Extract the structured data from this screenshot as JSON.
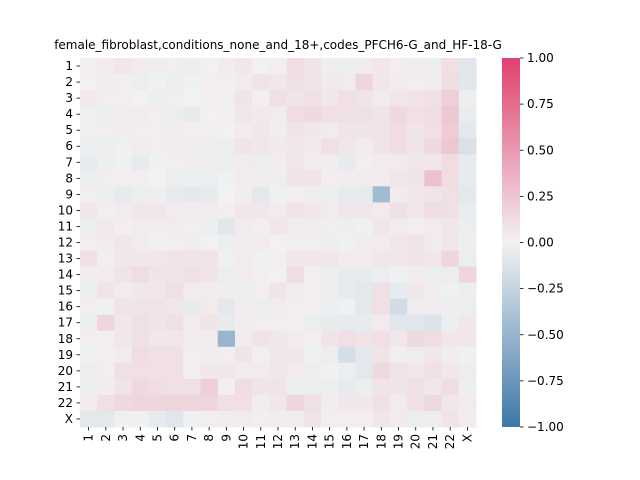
{
  "chart_data": {
    "type": "heatmap",
    "title": "female_fibroblast,conditions_none_and_18+,codes_PFCH6-G_and_HF-18-G",
    "rows": [
      "1",
      "2",
      "3",
      "4",
      "5",
      "6",
      "7",
      "8",
      "9",
      "10",
      "11",
      "12",
      "13",
      "14",
      "15",
      "16",
      "17",
      "18",
      "19",
      "20",
      "21",
      "22",
      "X"
    ],
    "cols": [
      "1",
      "2",
      "3",
      "4",
      "5",
      "6",
      "7",
      "8",
      "9",
      "10",
      "11",
      "12",
      "13",
      "14",
      "15",
      "16",
      "17",
      "18",
      "19",
      "20",
      "21",
      "22",
      "X"
    ],
    "values": [
      [
        0.02,
        0.04,
        0.06,
        0.04,
        0.03,
        0.02,
        -0.04,
        0.01,
        0.03,
        0.06,
        0.01,
        0.02,
        0.12,
        0.08,
        0.03,
        -0.03,
        0.04,
        0.06,
        0.02,
        0.03,
        -0.03,
        0.1,
        -0.1
      ],
      [
        0.01,
        0.03,
        0.02,
        -0.04,
        -0.02,
        -0.04,
        -0.02,
        0.02,
        0.02,
        0.04,
        0.08,
        0.07,
        0.1,
        0.08,
        0.05,
        0.04,
        0.16,
        0.06,
        0.04,
        0.02,
        0.03,
        0.12,
        -0.09
      ],
      [
        0.05,
        0.02,
        0.02,
        0.01,
        -0.03,
        0.02,
        0.0,
        0.02,
        0.02,
        0.08,
        0.02,
        0.1,
        0.08,
        0.1,
        0.06,
        0.1,
        0.08,
        0.04,
        0.06,
        0.08,
        0.1,
        0.2,
        -0.03
      ],
      [
        -0.02,
        -0.04,
        0.03,
        0.04,
        0.02,
        -0.04,
        -0.06,
        0.01,
        0.02,
        0.06,
        0.05,
        0.04,
        0.12,
        0.14,
        0.1,
        0.1,
        0.1,
        0.08,
        0.14,
        0.1,
        0.12,
        0.24,
        -0.05
      ],
      [
        -0.02,
        0.02,
        0.03,
        0.02,
        0.02,
        0.04,
        0.02,
        0.02,
        0.01,
        0.04,
        0.06,
        0.03,
        0.08,
        0.06,
        0.04,
        0.08,
        0.08,
        0.08,
        0.12,
        0.08,
        0.1,
        0.22,
        -0.08
      ],
      [
        -0.03,
        -0.04,
        -0.02,
        0.03,
        0.02,
        0.04,
        0.03,
        -0.03,
        -0.04,
        0.08,
        0.06,
        0.05,
        0.07,
        0.05,
        0.1,
        0.06,
        0.04,
        0.08,
        0.12,
        0.08,
        0.14,
        0.24,
        -0.14
      ],
      [
        -0.06,
        -0.03,
        -0.02,
        -0.06,
        -0.02,
        0.02,
        0.03,
        0.03,
        -0.04,
        0.04,
        -0.04,
        0.03,
        0.06,
        0.03,
        0.03,
        -0.06,
        0.02,
        0.04,
        0.04,
        0.06,
        0.06,
        0.12,
        -0.06
      ],
      [
        -0.03,
        0.02,
        0.02,
        0.02,
        0.0,
        -0.04,
        -0.03,
        -0.04,
        -0.02,
        0.04,
        0.03,
        -0.03,
        0.08,
        0.08,
        0.02,
        0.03,
        0.04,
        0.04,
        0.06,
        0.08,
        0.28,
        0.12,
        -0.06
      ],
      [
        0.02,
        -0.04,
        -0.06,
        -0.04,
        -0.03,
        -0.06,
        -0.08,
        -0.06,
        0.0,
        0.03,
        -0.08,
        -0.02,
        0.02,
        -0.03,
        -0.04,
        -0.06,
        -0.06,
        -0.45,
        0.04,
        0.06,
        0.08,
        0.1,
        -0.08
      ],
      [
        0.06,
        0.02,
        0.04,
        0.06,
        0.06,
        0.04,
        0.04,
        0.04,
        0.02,
        0.06,
        0.06,
        0.04,
        0.08,
        0.06,
        0.04,
        0.06,
        0.06,
        0.04,
        0.1,
        0.06,
        0.12,
        0.1,
        -0.05
      ],
      [
        -0.04,
        0.05,
        0.02,
        0.04,
        0.03,
        0.04,
        0.02,
        -0.03,
        -0.1,
        0.04,
        0.02,
        0.06,
        0.04,
        0.03,
        0.02,
        -0.03,
        -0.02,
        0.06,
        0.04,
        0.02,
        0.04,
        0.06,
        -0.04
      ],
      [
        0.02,
        0.04,
        0.06,
        0.04,
        -0.02,
        0.02,
        0.03,
        0.01,
        -0.03,
        0.03,
        0.04,
        0.01,
        0.02,
        0.02,
        -0.03,
        -0.02,
        0.03,
        0.04,
        0.06,
        0.08,
        0.04,
        0.06,
        -0.03
      ],
      [
        0.1,
        0.02,
        0.06,
        0.06,
        0.06,
        0.08,
        0.08,
        0.08,
        -0.02,
        0.03,
        -0.02,
        0.02,
        0.06,
        0.06,
        0.06,
        0.04,
        0.04,
        0.06,
        0.06,
        0.08,
        0.06,
        0.16,
        -0.04
      ],
      [
        0.03,
        0.04,
        0.08,
        0.12,
        0.08,
        0.08,
        0.1,
        0.08,
        -0.04,
        0.04,
        0.02,
        0.01,
        0.12,
        0.02,
        -0.04,
        -0.06,
        -0.06,
        -0.04,
        -0.02,
        0.03,
        -0.04,
        -0.04,
        0.16
      ],
      [
        -0.03,
        0.08,
        0.04,
        0.06,
        0.06,
        0.1,
        0.04,
        0.04,
        0.03,
        -0.03,
        0.02,
        0.08,
        0.03,
        0.02,
        -0.04,
        -0.06,
        -0.08,
        0.1,
        -0.06,
        0.06,
        0.03,
        -0.02,
        -0.03
      ],
      [
        0.02,
        -0.02,
        0.08,
        0.08,
        0.08,
        0.06,
        -0.06,
        0.04,
        -0.08,
        0.03,
        -0.04,
        0.04,
        0.02,
        0.02,
        -0.03,
        -0.02,
        -0.08,
        0.1,
        -0.18,
        -0.04,
        0.04,
        -0.03,
        -0.04
      ],
      [
        -0.03,
        0.16,
        0.06,
        0.1,
        0.08,
        0.1,
        0.04,
        0.08,
        -0.06,
        0.03,
        0.02,
        0.02,
        0.02,
        -0.04,
        -0.06,
        -0.06,
        -0.06,
        0.04,
        -0.1,
        -0.1,
        -0.12,
        -0.03,
        0.06
      ],
      [
        0.02,
        0.02,
        0.06,
        0.1,
        0.06,
        0.06,
        0.03,
        0.04,
        -0.5,
        0.04,
        0.08,
        0.06,
        0.04,
        0.02,
        0.08,
        0.1,
        0.08,
        0.1,
        0.06,
        0.14,
        0.12,
        0.06,
        0.06
      ],
      [
        -0.02,
        0.02,
        0.04,
        0.12,
        0.1,
        0.1,
        0.02,
        0.03,
        0.02,
        0.08,
        0.02,
        0.06,
        0.06,
        -0.02,
        -0.04,
        -0.16,
        -0.08,
        0.08,
        0.02,
        -0.04,
        0.06,
        0.03,
        -0.02
      ],
      [
        -0.03,
        0.02,
        0.1,
        0.1,
        0.1,
        0.1,
        0.02,
        0.06,
        0.06,
        0.04,
        0.04,
        0.06,
        0.04,
        -0.03,
        -0.02,
        -0.04,
        -0.08,
        0.14,
        0.08,
        0.06,
        0.1,
        0.06,
        -0.04
      ],
      [
        -0.04,
        0.03,
        0.08,
        0.14,
        0.12,
        0.1,
        0.1,
        0.2,
        0.02,
        0.12,
        0.08,
        0.08,
        -0.03,
        -0.04,
        -0.04,
        -0.06,
        -0.04,
        0.08,
        0.08,
        0.1,
        0.06,
        0.12,
        -0.03
      ],
      [
        0.04,
        0.1,
        0.14,
        0.16,
        0.16,
        0.16,
        0.16,
        0.16,
        0.1,
        0.1,
        0.03,
        0.06,
        0.16,
        0.1,
        0.03,
        0.06,
        0.06,
        0.1,
        0.04,
        0.1,
        0.14,
        0.06,
        0.04
      ],
      [
        -0.08,
        -0.08,
        -0.02,
        -0.02,
        -0.06,
        -0.1,
        -0.02,
        0.02,
        0.03,
        0.04,
        0.02,
        0.03,
        0.03,
        0.08,
        0.02,
        0.02,
        0.02,
        0.06,
        0.04,
        -0.04,
        0.03,
        0.08,
        0.03
      ]
    ],
    "vmin": -1,
    "vmax": 1,
    "colorbar_ticks": [
      "−1.00",
      "−0.75",
      "−0.50",
      "−0.25",
      "0.00",
      "0.25",
      "0.50",
      "0.75",
      "1.00"
    ],
    "colorbar_tick_values": [
      -1,
      -0.75,
      -0.5,
      -0.25,
      0,
      0.25,
      0.5,
      0.75,
      1
    ],
    "colormap": {
      "negative": "#3d78a8",
      "zero": "#f2f2f2",
      "positive": "#e0406e"
    }
  }
}
